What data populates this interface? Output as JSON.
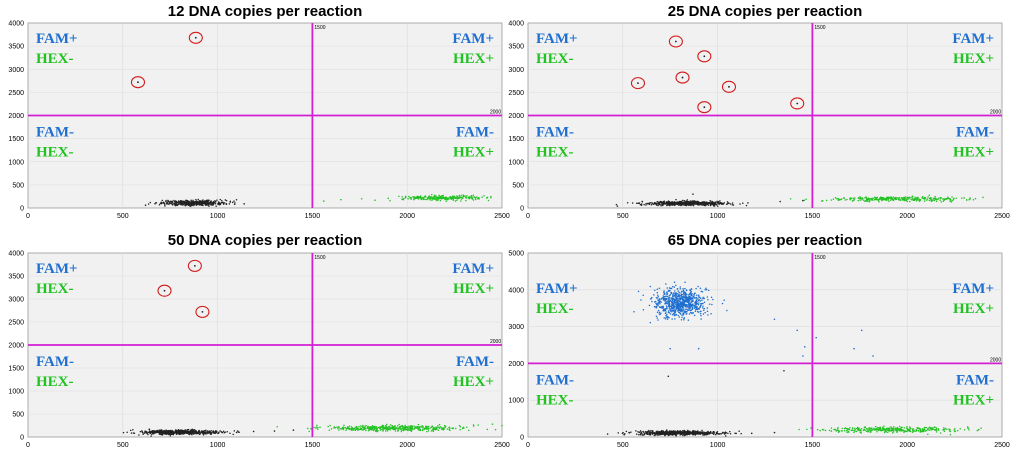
{
  "colors": {
    "fam": "#1f6fd0",
    "hex": "#22c222",
    "threshold": "#d21fd2",
    "negative": "#222222",
    "circle": "#d11a1a",
    "plot_bg": "#f1f1f1"
  },
  "chart_data": [
    {
      "type": "scatter",
      "title": "12 DNA copies per reaction",
      "xlim": [
        0,
        2500
      ],
      "ylim": [
        0,
        4000
      ],
      "xticks": [
        "0",
        "500",
        "1000",
        "1500",
        "2000",
        "2500"
      ],
      "yticks": [
        "0",
        "500",
        "1000",
        "1500",
        "2000",
        "2500",
        "3000",
        "3500",
        "4000"
      ],
      "thresholds": {
        "x": 1500,
        "y": 2000,
        "x_label": "1500",
        "y_label": "2000"
      },
      "quadrant_labels": {
        "fam_pos": "FAM+",
        "fam_neg": "FAM-",
        "hex_pos": "HEX+",
        "hex_neg": "HEX-"
      },
      "clusters": [
        {
          "series": "negative",
          "center": [
            870,
            110
          ],
          "spread": [
            85,
            28
          ],
          "count": 450
        },
        {
          "series": "hex",
          "center": [
            2190,
            220
          ],
          "spread": [
            110,
            28
          ],
          "count": 260
        }
      ],
      "circled_points": [
        [
          885,
          3680
        ],
        [
          580,
          2720
        ]
      ],
      "scatter_points": [
        [
          620,
          60
        ],
        [
          1090,
          80
        ],
        [
          1140,
          90
        ],
        [
          1560,
          150
        ],
        [
          1650,
          180
        ],
        [
          1760,
          200
        ],
        [
          1830,
          170
        ],
        [
          1900,
          210
        ],
        [
          1980,
          180
        ]
      ]
    },
    {
      "type": "scatter",
      "title": "25 DNA copies per reaction",
      "xlim": [
        0,
        2500
      ],
      "ylim": [
        0,
        4000
      ],
      "xticks": [
        "0",
        "500",
        "1000",
        "1500",
        "2000",
        "2500"
      ],
      "yticks": [
        "0",
        "500",
        "1000",
        "1500",
        "2000",
        "2500",
        "3000",
        "3500",
        "4000"
      ],
      "thresholds": {
        "x": 1500,
        "y": 2000,
        "x_label": "1500",
        "y_label": "2000"
      },
      "quadrant_labels": {
        "fam_pos": "FAM+",
        "fam_neg": "FAM-",
        "hex_pos": "HEX+",
        "hex_neg": "HEX-"
      },
      "clusters": [
        {
          "series": "negative",
          "center": [
            830,
            100
          ],
          "spread": [
            110,
            22
          ],
          "count": 550
        },
        {
          "series": "hex",
          "center": [
            1950,
            195
          ],
          "spread": [
            180,
            24
          ],
          "count": 320
        }
      ],
      "circled_points": [
        [
          780,
          3600
        ],
        [
          930,
          3280
        ],
        [
          815,
          2820
        ],
        [
          580,
          2700
        ],
        [
          1060,
          2620
        ],
        [
          930,
          2180
        ],
        [
          1420,
          2260
        ]
      ],
      "scatter_points": [
        [
          1160,
          110
        ],
        [
          1330,
          140
        ],
        [
          1450,
          160
        ],
        [
          1550,
          150
        ],
        [
          1640,
          170
        ],
        [
          1720,
          180
        ],
        [
          2300,
          220
        ],
        [
          2400,
          230
        ],
        [
          870,
          300
        ]
      ]
    },
    {
      "type": "scatter",
      "title": "50 DNA copies per reaction",
      "xlim": [
        0,
        2500
      ],
      "ylim": [
        0,
        4000
      ],
      "xticks": [
        "0",
        "500",
        "1000",
        "1500",
        "2000",
        "2500"
      ],
      "yticks": [
        "0",
        "500",
        "1000",
        "1500",
        "2000",
        "2500",
        "3000",
        "3500",
        "4000"
      ],
      "thresholds": {
        "x": 1500,
        "y": 2000,
        "x_label": "1500",
        "y_label": "2000"
      },
      "quadrant_labels": {
        "fam_pos": "FAM+",
        "fam_neg": "FAM-",
        "hex_pos": "HEX+",
        "hex_neg": "HEX-"
      },
      "clusters": [
        {
          "series": "negative",
          "center": [
            800,
            105
          ],
          "spread": [
            100,
            24
          ],
          "count": 600
        },
        {
          "series": "hex",
          "center": [
            1920,
            190
          ],
          "spread": [
            190,
            30
          ],
          "count": 450
        }
      ],
      "circled_points": [
        [
          880,
          3720
        ],
        [
          720,
          3180
        ],
        [
          920,
          2720
        ]
      ],
      "scatter_points": [
        [
          1100,
          100
        ],
        [
          1190,
          120
        ],
        [
          1300,
          130
        ],
        [
          1400,
          150
        ],
        [
          2350,
          260
        ],
        [
          2450,
          280
        ],
        [
          2500,
          250
        ]
      ]
    },
    {
      "type": "scatter",
      "title": "65 DNA copies per reaction",
      "xlim": [
        0,
        2500
      ],
      "ylim": [
        0,
        5000
      ],
      "xticks": [
        "0",
        "500",
        "1000",
        "1500",
        "2000",
        "2500"
      ],
      "yticks": [
        "0",
        "1000",
        "2000",
        "3000",
        "4000",
        "5000"
      ],
      "thresholds": {
        "x": 1500,
        "y": 2000,
        "x_label": "1500",
        "y_label": "2000"
      },
      "quadrant_labels": {
        "fam_pos": "FAM+",
        "fam_neg": "FAM-",
        "hex_pos": "HEX+",
        "hex_neg": "HEX-"
      },
      "clusters": [
        {
          "series": "fam",
          "center": [
            800,
            3650
          ],
          "spread": [
            70,
            190
          ],
          "count": 750
        },
        {
          "series": "negative",
          "center": [
            790,
            110
          ],
          "spread": [
            110,
            28
          ],
          "count": 600
        },
        {
          "series": "hex",
          "center": [
            1930,
            200
          ],
          "spread": [
            190,
            36
          ],
          "count": 350
        }
      ],
      "circled_points": [],
      "scatter_points": [
        [
          750,
          2400
        ],
        [
          900,
          2400
        ],
        [
          1300,
          3200
        ],
        [
          1420,
          2900
        ],
        [
          1460,
          2450
        ],
        [
          1520,
          2700
        ],
        [
          1720,
          2400
        ],
        [
          1820,
          2200
        ],
        [
          740,
          1650
        ],
        [
          1350,
          1800
        ],
        [
          1450,
          2200
        ],
        [
          1760,
          2900
        ],
        [
          420,
          80
        ],
        [
          1180,
          100
        ],
        [
          1300,
          120
        ],
        [
          1600,
          160
        ]
      ]
    }
  ]
}
